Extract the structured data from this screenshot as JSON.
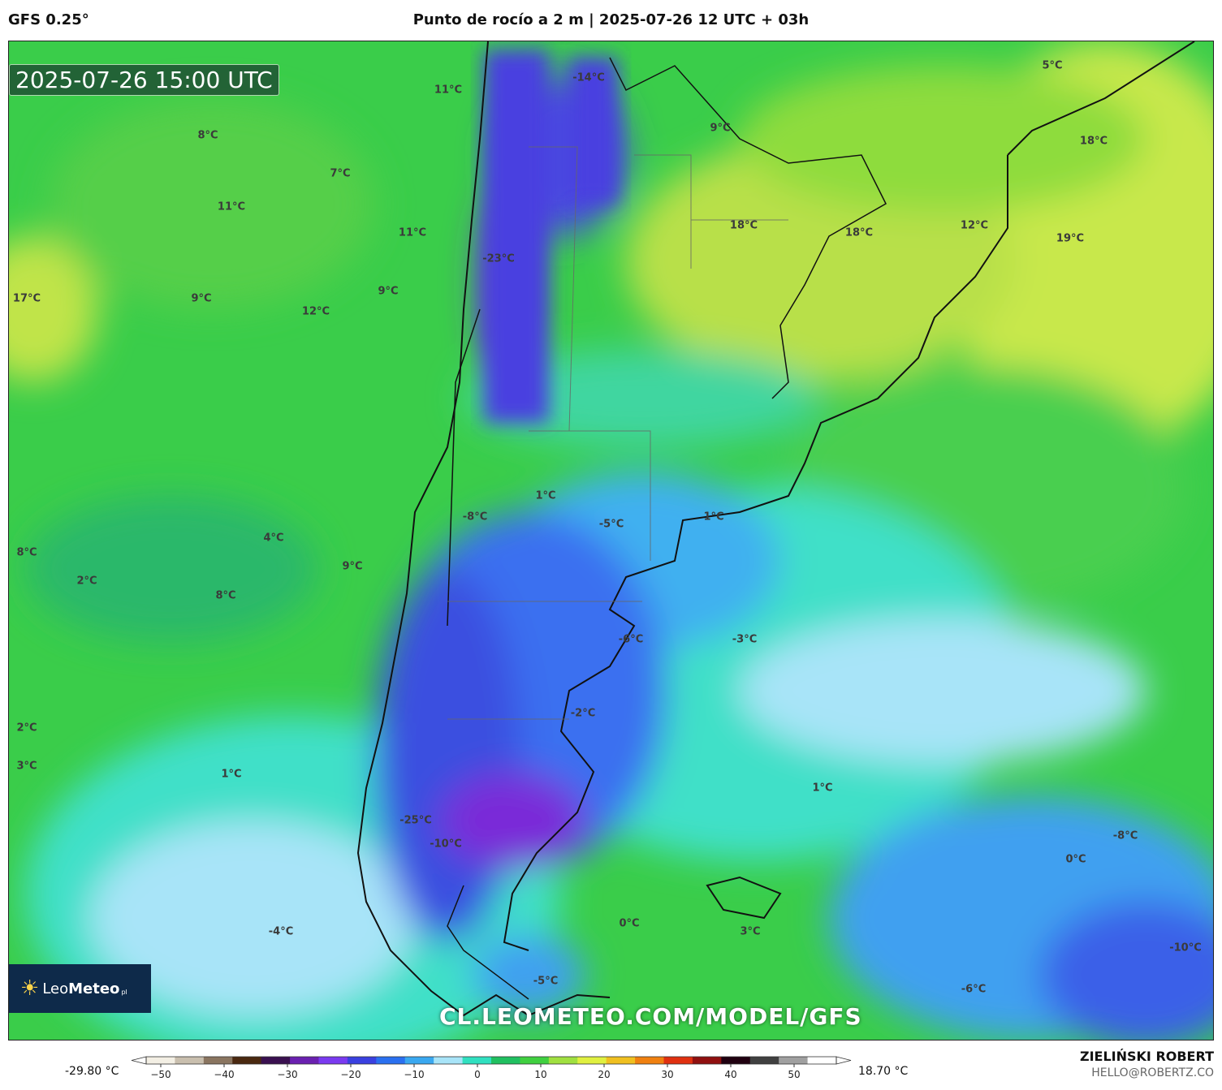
{
  "header": {
    "model": "GFS 0.25°",
    "title": "Punto de rocío a 2 m | 2025-07-26 12 UTC + 03h"
  },
  "map": {
    "timestamp": "2025-07-26 15:00 UTC",
    "watermark": "CL.LEOMETEO.COM/MODEL/GFS",
    "logo": {
      "name": "LeoMeteo",
      "name_light": "Leo",
      "name_bold": "Meteo",
      "tld": "pl"
    },
    "colors": {
      "ocean_warm": "#7fd93a",
      "land_warm": "#c4e84a",
      "mid": "#2fc860",
      "cool": "#3fe0c0",
      "cold_light": "#a8e4f8",
      "cold": "#3fa0f0",
      "very_cold": "#3a50e0",
      "coldest": "#7a2ad8",
      "border": "#111111"
    },
    "labels": [
      {
        "text": "11°C"
      },
      {
        "text": "-14°C"
      },
      {
        "text": "5°C"
      },
      {
        "text": "8°C"
      },
      {
        "text": "7°C"
      },
      {
        "text": "9°C"
      },
      {
        "text": "18°C"
      },
      {
        "text": "11°C"
      },
      {
        "text": "11°C"
      },
      {
        "text": "18°C"
      },
      {
        "text": "18°C"
      },
      {
        "text": "12°C"
      },
      {
        "text": "19°C"
      },
      {
        "text": "-23°C"
      },
      {
        "text": "17°C"
      },
      {
        "text": "9°C"
      },
      {
        "text": "12°C"
      },
      {
        "text": "9°C"
      },
      {
        "text": "1°C"
      },
      {
        "text": "-8°C"
      },
      {
        "text": "-5°C"
      },
      {
        "text": "1°C"
      },
      {
        "text": "4°C"
      },
      {
        "text": "8°C"
      },
      {
        "text": "9°C"
      },
      {
        "text": "2°C"
      },
      {
        "text": "8°C"
      },
      {
        "text": "-6°C"
      },
      {
        "text": "-3°C"
      },
      {
        "text": "-2°C"
      },
      {
        "text": "2°C"
      },
      {
        "text": "3°C"
      },
      {
        "text": "1°C"
      },
      {
        "text": "1°C"
      },
      {
        "text": "-25°C"
      },
      {
        "text": "-10°C"
      },
      {
        "text": "-8°C"
      },
      {
        "text": "0°C"
      },
      {
        "text": "-4°C"
      },
      {
        "text": "0°C"
      },
      {
        "text": "3°C"
      },
      {
        "text": "-10°C"
      },
      {
        "text": "-5°C"
      },
      {
        "text": "-6°C"
      }
    ]
  },
  "colorbar": {
    "min_label": "-29.80 °C",
    "max_label": "18.70 °C",
    "ticks": [
      "−50",
      "−40",
      "−30",
      "−20",
      "−10",
      "0",
      "10",
      "20",
      "30",
      "40",
      "50"
    ],
    "stops": [
      "#f3efe4",
      "#c9bfae",
      "#8a7560",
      "#4a2810",
      "#3a1050",
      "#6a20b0",
      "#7a3af0",
      "#3a40e0",
      "#2a70f0",
      "#3aa8f0",
      "#a8e4f8",
      "#30e0c0",
      "#20c060",
      "#40d040",
      "#a0e040",
      "#e0f040",
      "#f0c020",
      "#f08010",
      "#e03010",
      "#901010",
      "#200010",
      "#404040",
      "#a0a0a0",
      "#ffffff"
    ]
  },
  "credits": {
    "name": "ZIELIŃSKI ROBERT",
    "email": "HELLO@ROBERTZ.CO"
  }
}
